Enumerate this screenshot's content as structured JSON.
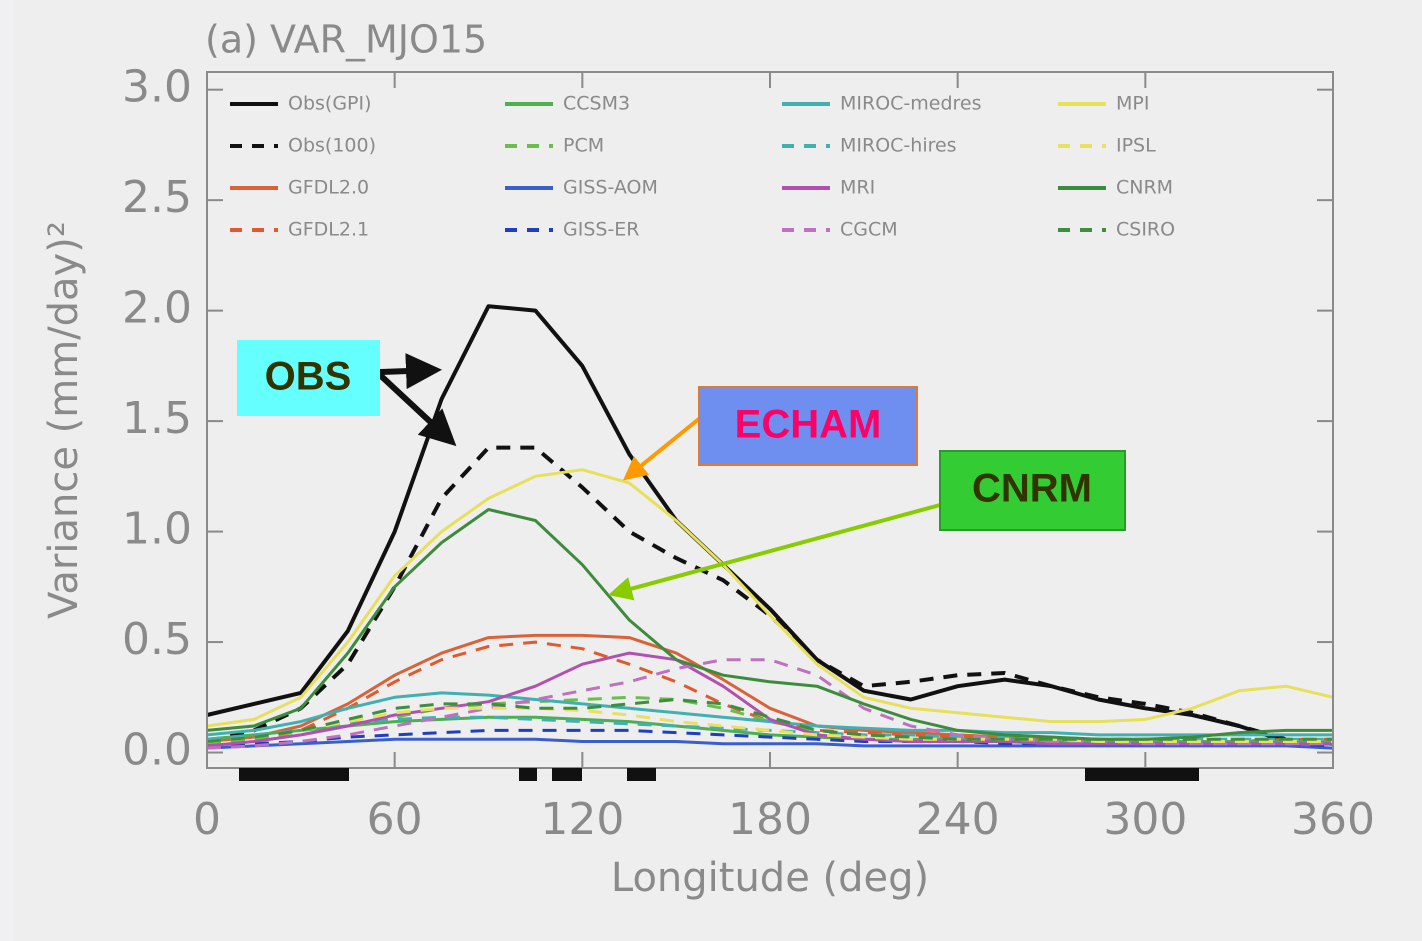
{
  "chart_data": {
    "type": "line",
    "title": "(a) VAR_MJO15",
    "ylabel": "Variance (mm/day)²",
    "xlabel": "Longitude (deg)",
    "xlim": [
      0,
      360
    ],
    "ylim": [
      -0.07,
      3.08
    ],
    "xticks": [
      0,
      60,
      120,
      180,
      240,
      300,
      360
    ],
    "yticks": [
      {
        "value": 0,
        "label": "0.0"
      },
      0.5,
      {
        "value": 1,
        "label": "1.0"
      },
      1.5,
      {
        "value": 2,
        "label": "2.0"
      },
      2.5,
      {
        "value": 3,
        "label": "3.0"
      }
    ],
    "x": [
      0,
      15,
      30,
      45,
      60,
      75,
      90,
      105,
      120,
      135,
      150,
      165,
      180,
      195,
      210,
      225,
      240,
      255,
      270,
      285,
      300,
      315,
      330,
      345,
      360
    ],
    "series": [
      {
        "name": "Obs(GPI)",
        "color": "#111111",
        "dashed": false,
        "values": [
          0.17,
          0.22,
          0.27,
          0.55,
          1.0,
          1.6,
          2.02,
          2.0,
          1.75,
          1.35,
          1.05,
          0.85,
          0.65,
          0.42,
          0.28,
          0.24,
          0.3,
          0.33,
          0.3,
          0.24,
          0.2,
          0.17,
          0.12,
          0.05,
          0.04
        ]
      },
      {
        "name": "Obs(100)",
        "color": "#111111",
        "dashed": true,
        "values": [
          0.05,
          0.1,
          0.2,
          0.4,
          0.75,
          1.15,
          1.38,
          1.38,
          1.2,
          1.0,
          0.88,
          0.78,
          0.62,
          0.42,
          0.3,
          0.32,
          0.35,
          0.36,
          0.3,
          0.25,
          0.22,
          0.18,
          0.12,
          0.06,
          0.04
        ]
      },
      {
        "name": "GFDL2.0",
        "color": "#d9623b",
        "dashed": false,
        "values": [
          0.05,
          0.07,
          0.12,
          0.22,
          0.35,
          0.45,
          0.52,
          0.53,
          0.53,
          0.52,
          0.45,
          0.33,
          0.2,
          0.12,
          0.1,
          0.09,
          0.08,
          0.07,
          0.06,
          0.05,
          0.05,
          0.05,
          0.05,
          0.05,
          0.05
        ]
      },
      {
        "name": "GFDL2.1",
        "color": "#e05a30",
        "dashed": true,
        "values": [
          0.04,
          0.06,
          0.1,
          0.2,
          0.32,
          0.42,
          0.48,
          0.5,
          0.47,
          0.4,
          0.32,
          0.22,
          0.14,
          0.1,
          0.09,
          0.08,
          0.07,
          0.06,
          0.06,
          0.05,
          0.05,
          0.05,
          0.05,
          0.06,
          0.06
        ]
      },
      {
        "name": "CCSM3",
        "color": "#4caf50",
        "dashed": false,
        "values": [
          0.06,
          0.08,
          0.1,
          0.12,
          0.14,
          0.15,
          0.16,
          0.16,
          0.15,
          0.14,
          0.12,
          0.1,
          0.08,
          0.07,
          0.06,
          0.06,
          0.06,
          0.06,
          0.05,
          0.05,
          0.05,
          0.05,
          0.05,
          0.05,
          0.05
        ]
      },
      {
        "name": "PCM",
        "color": "#6abf4b",
        "dashed": true,
        "values": [
          0.04,
          0.06,
          0.08,
          0.12,
          0.16,
          0.2,
          0.22,
          0.23,
          0.24,
          0.25,
          0.24,
          0.2,
          0.14,
          0.1,
          0.08,
          0.07,
          0.06,
          0.05,
          0.05,
          0.04,
          0.04,
          0.04,
          0.04,
          0.04,
          0.04
        ]
      },
      {
        "name": "GISS-AOM",
        "color": "#3a5fcd",
        "dashed": false,
        "values": [
          0.02,
          0.03,
          0.04,
          0.05,
          0.06,
          0.06,
          0.06,
          0.06,
          0.05,
          0.05,
          0.05,
          0.04,
          0.04,
          0.04,
          0.03,
          0.03,
          0.03,
          0.03,
          0.03,
          0.03,
          0.03,
          0.03,
          0.03,
          0.03,
          0.02
        ]
      },
      {
        "name": "GISS-ER",
        "color": "#1f3fbf",
        "dashed": true,
        "values": [
          0.03,
          0.04,
          0.05,
          0.07,
          0.08,
          0.09,
          0.1,
          0.1,
          0.1,
          0.1,
          0.09,
          0.08,
          0.07,
          0.06,
          0.05,
          0.05,
          0.05,
          0.04,
          0.04,
          0.04,
          0.04,
          0.04,
          0.04,
          0.04,
          0.03
        ]
      },
      {
        "name": "MIROC-medres",
        "color": "#40b0b0",
        "dashed": false,
        "values": [
          0.08,
          0.1,
          0.14,
          0.2,
          0.25,
          0.27,
          0.26,
          0.24,
          0.22,
          0.2,
          0.18,
          0.16,
          0.14,
          0.12,
          0.11,
          0.1,
          0.1,
          0.09,
          0.09,
          0.08,
          0.08,
          0.08,
          0.08,
          0.08,
          0.08
        ]
      },
      {
        "name": "MIROC-hires",
        "color": "#40b0b0",
        "dashed": true,
        "values": [
          0.06,
          0.08,
          0.1,
          0.13,
          0.15,
          0.16,
          0.16,
          0.15,
          0.14,
          0.13,
          0.12,
          0.11,
          0.1,
          0.09,
          0.08,
          0.08,
          0.07,
          0.07,
          0.07,
          0.06,
          0.06,
          0.06,
          0.06,
          0.06,
          0.06
        ]
      },
      {
        "name": "MRI",
        "color": "#b050b0",
        "dashed": false,
        "values": [
          0.03,
          0.05,
          0.08,
          0.12,
          0.17,
          0.2,
          0.23,
          0.3,
          0.4,
          0.45,
          0.42,
          0.3,
          0.15,
          0.08,
          0.06,
          0.05,
          0.05,
          0.05,
          0.04,
          0.04,
          0.04,
          0.04,
          0.04,
          0.04,
          0.04
        ]
      },
      {
        "name": "CGCM",
        "color": "#c070c0",
        "dashed": true,
        "values": [
          0.02,
          0.03,
          0.05,
          0.08,
          0.12,
          0.16,
          0.2,
          0.24,
          0.28,
          0.32,
          0.38,
          0.42,
          0.42,
          0.35,
          0.2,
          0.12,
          0.08,
          0.06,
          0.05,
          0.05,
          0.04,
          0.04,
          0.04,
          0.04,
          0.04
        ]
      },
      {
        "name": "MPI",
        "color": "#e6e05a",
        "dashed": false,
        "values": [
          0.12,
          0.15,
          0.25,
          0.5,
          0.8,
          1.0,
          1.15,
          1.25,
          1.28,
          1.22,
          1.05,
          0.85,
          0.62,
          0.4,
          0.25,
          0.2,
          0.18,
          0.16,
          0.14,
          0.14,
          0.15,
          0.2,
          0.28,
          0.3,
          0.25
        ]
      },
      {
        "name": "IPSL",
        "color": "#e8e060",
        "dashed": true,
        "values": [
          0.05,
          0.07,
          0.1,
          0.14,
          0.18,
          0.2,
          0.2,
          0.2,
          0.19,
          0.17,
          0.14,
          0.12,
          0.1,
          0.08,
          0.07,
          0.06,
          0.06,
          0.06,
          0.06,
          0.05,
          0.05,
          0.05,
          0.05,
          0.05,
          0.05
        ]
      },
      {
        "name": "CNRM",
        "color": "#3d8b3d",
        "dashed": false,
        "values": [
          0.1,
          0.12,
          0.2,
          0.45,
          0.75,
          0.95,
          1.1,
          1.05,
          0.85,
          0.6,
          0.42,
          0.35,
          0.32,
          0.3,
          0.22,
          0.15,
          0.1,
          0.08,
          0.07,
          0.06,
          0.06,
          0.07,
          0.09,
          0.1,
          0.1
        ]
      },
      {
        "name": "CSIRO",
        "color": "#3e8e3e",
        "dashed": true,
        "values": [
          0.05,
          0.07,
          0.1,
          0.15,
          0.2,
          0.22,
          0.22,
          0.2,
          0.2,
          0.22,
          0.24,
          0.22,
          0.16,
          0.1,
          0.08,
          0.07,
          0.06,
          0.06,
          0.06,
          0.06,
          0.06,
          0.06,
          0.06,
          0.06,
          0.06
        ]
      }
    ],
    "annotations": [
      {
        "text": "OBS"
      },
      {
        "text": "ECHAM"
      },
      {
        "text": "CNRM"
      }
    ]
  }
}
